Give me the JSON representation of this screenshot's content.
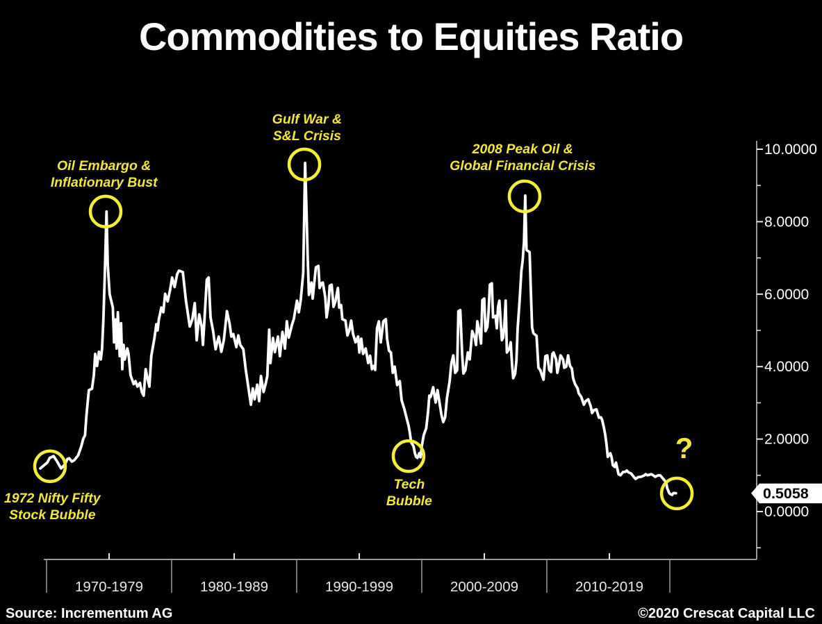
{
  "title": "Commodities to Equities Ratio",
  "footer": {
    "source": "Source: Incrementum AG",
    "copyright": "©2020 Crescat Capital LLC"
  },
  "colors": {
    "background": "#000000",
    "line": "#ffffff",
    "annotation_yellow": "#f2e73b",
    "circle_yellow": "#f6ee35",
    "axis_gray": "#9a9a9a",
    "tick_white": "#e8e8e8",
    "label_white": "#ffffff",
    "tag_bg": "#ffffff",
    "tag_text": "#000000"
  },
  "axes": {
    "y": {
      "major_ticks": [
        {
          "value": 10,
          "label": "10.0000"
        },
        {
          "value": 8,
          "label": "8.0000"
        },
        {
          "value": 6,
          "label": "6.0000"
        },
        {
          "value": 4,
          "label": "4.0000"
        },
        {
          "value": 2,
          "label": "2.0000"
        },
        {
          "value": 0,
          "label": "0.0000"
        }
      ],
      "minor_tick_values": [
        9,
        7,
        5,
        3,
        1,
        -1
      ]
    },
    "x": {
      "decade_labels": [
        "1970-1979",
        "1980-1989",
        "1990-1999",
        "2000-2009",
        "2010-2019"
      ]
    }
  },
  "value_tag": {
    "label": "0.5058",
    "value": 0.5058
  },
  "annotations": [
    {
      "id": "nifty-fifty-bubble",
      "lines": [
        "1972 Nifty Fifty",
        "Stock Bubble"
      ],
      "label_year": 1970.95,
      "label_value": 0.38,
      "circle_year": 1970.77,
      "circle_value": 1.25
    },
    {
      "id": "oil-embargo",
      "lines": [
        "Oil Embargo &",
        "Inflationary Bust"
      ],
      "label_year": 1975.05,
      "label_value": 9.56,
      "circle_year": 1975.18,
      "circle_value": 8.28
    },
    {
      "id": "gulf-war-sl-crisis",
      "lines": [
        "Gulf War &",
        "S&L Crisis"
      ],
      "label_year": 1991.15,
      "label_value": 10.84,
      "circle_year": 1990.94,
      "circle_value": 9.58
    },
    {
      "id": "tech-bubble",
      "lines": [
        "Tech",
        "Bubble"
      ],
      "label_year": 1999.25,
      "label_value": 0.77,
      "circle_year": 1999.2,
      "circle_value": 1.53
    },
    {
      "id": "peak-oil-gfc",
      "lines": [
        "2008 Peak Oil &",
        "Global Financial Crisis"
      ],
      "label_year": 2008.25,
      "label_value": 10.02,
      "circle_year": 2008.4,
      "circle_value": 8.7
    },
    {
      "id": "question-mark",
      "lines": [
        "?"
      ],
      "big": true,
      "label_year": 2021.05,
      "label_value": 1.76,
      "circle_year": 2020.47,
      "circle_value": 0.5
    }
  ],
  "chart_data": {
    "type": "line",
    "title": "Commodities to Equities Ratio",
    "series_name": "Commodities to Equities Ratio",
    "x_unit": "year",
    "xlim": [
      1970,
      2020.5
    ],
    "ylim": [
      -1.4,
      10.4
    ],
    "grid": false,
    "legend": "none",
    "points": [
      [
        1970.0,
        1.19
      ],
      [
        1970.2,
        1.25
      ],
      [
        1970.55,
        1.35
      ],
      [
        1970.75,
        1.48
      ],
      [
        1971.05,
        1.53
      ],
      [
        1971.3,
        1.4
      ],
      [
        1971.65,
        1.19
      ],
      [
        1971.95,
        1.3
      ],
      [
        1972.15,
        1.45
      ],
      [
        1972.3,
        1.47
      ],
      [
        1972.5,
        1.38
      ],
      [
        1972.7,
        1.42
      ],
      [
        1973.0,
        1.55
      ],
      [
        1973.25,
        1.8
      ],
      [
        1973.4,
        2.0
      ],
      [
        1973.55,
        2.11
      ],
      [
        1973.65,
        2.6
      ],
      [
        1973.75,
        3.0
      ],
      [
        1973.85,
        3.35
      ],
      [
        1974.1,
        3.39
      ],
      [
        1974.25,
        3.77
      ],
      [
        1974.35,
        4.35
      ],
      [
        1974.5,
        4.02
      ],
      [
        1974.65,
        4.41
      ],
      [
        1974.8,
        4.2
      ],
      [
        1974.9,
        4.5
      ],
      [
        1975.0,
        5.3
      ],
      [
        1975.1,
        6.4
      ],
      [
        1975.25,
        8.28
      ],
      [
        1975.35,
        6.8
      ],
      [
        1975.5,
        6.0
      ],
      [
        1975.75,
        5.63
      ],
      [
        1975.85,
        4.67
      ],
      [
        1975.95,
        5.3
      ],
      [
        1976.05,
        4.5
      ],
      [
        1976.15,
        5.5
      ],
      [
        1976.3,
        4.29
      ],
      [
        1976.4,
        5.2
      ],
      [
        1976.5,
        3.93
      ],
      [
        1976.6,
        4.6
      ],
      [
        1976.7,
        4.2
      ],
      [
        1976.9,
        4.5
      ],
      [
        1977.0,
        4.35
      ],
      [
        1977.15,
        3.77
      ],
      [
        1977.4,
        3.52
      ],
      [
        1977.55,
        3.6
      ],
      [
        1977.7,
        3.45
      ],
      [
        1977.9,
        3.55
      ],
      [
        1978.05,
        3.3
      ],
      [
        1978.2,
        3.2
      ],
      [
        1978.35,
        3.93
      ],
      [
        1978.55,
        3.6
      ],
      [
        1978.65,
        3.45
      ],
      [
        1978.8,
        4.29
      ],
      [
        1979.05,
        4.79
      ],
      [
        1979.2,
        5.17
      ],
      [
        1979.3,
        5.0
      ],
      [
        1979.4,
        5.3
      ],
      [
        1979.6,
        5.63
      ],
      [
        1979.75,
        5.5
      ],
      [
        1979.9,
        6.01
      ],
      [
        1980.1,
        5.8
      ],
      [
        1980.3,
        6.13
      ],
      [
        1980.45,
        6.46
      ],
      [
        1980.65,
        6.2
      ],
      [
        1980.85,
        6.55
      ],
      [
        1981.0,
        6.65
      ],
      [
        1981.3,
        6.61
      ],
      [
        1981.55,
        5.82
      ],
      [
        1981.85,
        5.11
      ],
      [
        1982.05,
        5.3
      ],
      [
        1982.25,
        5.75
      ],
      [
        1982.4,
        4.73
      ],
      [
        1982.6,
        5.44
      ],
      [
        1982.8,
        5.1
      ],
      [
        1982.9,
        4.6
      ],
      [
        1983.05,
        5.5
      ],
      [
        1983.2,
        6.4
      ],
      [
        1983.35,
        6.46
      ],
      [
        1983.5,
        5.36
      ],
      [
        1983.7,
        4.98
      ],
      [
        1983.9,
        4.48
      ],
      [
        1984.05,
        4.7
      ],
      [
        1984.15,
        4.83
      ],
      [
        1984.35,
        4.41
      ],
      [
        1984.55,
        4.73
      ],
      [
        1984.7,
        5.2
      ],
      [
        1984.8,
        5.53
      ],
      [
        1985.0,
        5.2
      ],
      [
        1985.15,
        4.83
      ],
      [
        1985.3,
        4.9
      ],
      [
        1985.55,
        4.54
      ],
      [
        1985.7,
        4.86
      ],
      [
        1985.85,
        4.6
      ],
      [
        1986.1,
        4.48
      ],
      [
        1986.3,
        3.9
      ],
      [
        1986.55,
        3.3
      ],
      [
        1986.7,
        2.95
      ],
      [
        1986.85,
        3.4
      ],
      [
        1987.0,
        3.1
      ],
      [
        1987.2,
        3.5
      ],
      [
        1987.35,
        3.05
      ],
      [
        1987.5,
        3.74
      ],
      [
        1987.7,
        3.3
      ],
      [
        1987.85,
        3.5
      ],
      [
        1988.0,
        3.74
      ],
      [
        1988.15,
        5.02
      ],
      [
        1988.25,
        4.1
      ],
      [
        1988.45,
        4.79
      ],
      [
        1988.6,
        4.4
      ],
      [
        1988.85,
        4.83
      ],
      [
        1989.0,
        4.29
      ],
      [
        1989.2,
        4.96
      ],
      [
        1989.4,
        4.5
      ],
      [
        1989.55,
        5.25
      ],
      [
        1989.7,
        4.8
      ],
      [
        1989.95,
        5.15
      ],
      [
        1990.1,
        5.31
      ],
      [
        1990.35,
        5.82
      ],
      [
        1990.5,
        5.5
      ],
      [
        1990.65,
        5.84
      ],
      [
        1990.85,
        6.59
      ],
      [
        1991.0,
        9.62
      ],
      [
        1991.1,
        8.4
      ],
      [
        1991.2,
        7.03
      ],
      [
        1991.3,
        5.98
      ],
      [
        1991.5,
        6.32
      ],
      [
        1991.6,
        5.88
      ],
      [
        1991.85,
        6.74
      ],
      [
        1992.05,
        6.78
      ],
      [
        1992.15,
        6.17
      ],
      [
        1992.3,
        6.3
      ],
      [
        1992.4,
        6.32
      ],
      [
        1992.6,
        5.9
      ],
      [
        1992.7,
        5.36
      ],
      [
        1992.85,
        5.7
      ],
      [
        1992.95,
        6.23
      ],
      [
        1993.1,
        6.26
      ],
      [
        1993.25,
        5.65
      ],
      [
        1993.4,
        5.8
      ],
      [
        1993.6,
        6.17
      ],
      [
        1993.7,
        5.63
      ],
      [
        1993.85,
        5.7
      ],
      [
        1993.95,
        5.31
      ],
      [
        1994.2,
        5.27
      ],
      [
        1994.35,
        4.86
      ],
      [
        1994.5,
        5.0
      ],
      [
        1994.65,
        5.27
      ],
      [
        1994.8,
        4.9
      ],
      [
        1995.0,
        4.67
      ],
      [
        1995.2,
        4.83
      ],
      [
        1995.3,
        4.39
      ],
      [
        1995.45,
        4.77
      ],
      [
        1995.6,
        4.35
      ],
      [
        1995.8,
        4.5
      ],
      [
        1996.0,
        4.1
      ],
      [
        1996.15,
        4.3
      ],
      [
        1996.3,
        3.93
      ],
      [
        1996.45,
        4.02
      ],
      [
        1996.55,
        3.91
      ],
      [
        1996.7,
        5.06
      ],
      [
        1996.85,
        5.25
      ],
      [
        1997.0,
        4.67
      ],
      [
        1997.2,
        5.25
      ],
      [
        1997.4,
        5.31
      ],
      [
        1997.5,
        4.77
      ],
      [
        1997.65,
        4.44
      ],
      [
        1997.8,
        4.39
      ],
      [
        1997.95,
        3.83
      ],
      [
        1998.1,
        4.0
      ],
      [
        1998.3,
        3.49
      ],
      [
        1998.5,
        3.6
      ],
      [
        1998.65,
        3.07
      ],
      [
        1998.85,
        2.85
      ],
      [
        1999.05,
        2.57
      ],
      [
        1999.2,
        2.37
      ],
      [
        1999.3,
        2.18
      ],
      [
        1999.4,
        1.92
      ],
      [
        1999.6,
        1.8
      ],
      [
        1999.7,
        1.61
      ],
      [
        1999.8,
        1.51
      ],
      [
        1999.9,
        1.48
      ],
      [
        2000.05,
        1.61
      ],
      [
        2000.15,
        1.5
      ],
      [
        2000.25,
        1.8
      ],
      [
        2000.4,
        2.11
      ],
      [
        2000.6,
        2.3
      ],
      [
        2000.75,
        2.76
      ],
      [
        2000.85,
        3.2
      ],
      [
        2000.95,
        3.16
      ],
      [
        2001.15,
        3.43
      ],
      [
        2001.35,
        3.01
      ],
      [
        2001.5,
        3.35
      ],
      [
        2001.8,
        2.68
      ],
      [
        2001.95,
        2.47
      ],
      [
        2002.1,
        2.6
      ],
      [
        2002.25,
        3.14
      ],
      [
        2002.45,
        3.58
      ],
      [
        2002.6,
        4.1
      ],
      [
        2002.75,
        4.31
      ],
      [
        2002.9,
        3.83
      ],
      [
        2003.05,
        3.9
      ],
      [
        2003.15,
        5.53
      ],
      [
        2003.3,
        5.56
      ],
      [
        2003.45,
        4.35
      ],
      [
        2003.55,
        3.81
      ],
      [
        2003.7,
        3.9
      ],
      [
        2003.9,
        4.39
      ],
      [
        2004.05,
        4.2
      ],
      [
        2004.25,
        4.98
      ],
      [
        2004.45,
        4.8
      ],
      [
        2004.55,
        4.6
      ],
      [
        2004.65,
        5.25
      ],
      [
        2004.8,
        5.0
      ],
      [
        2004.95,
        4.64
      ],
      [
        2005.05,
        5.84
      ],
      [
        2005.2,
        5.88
      ],
      [
        2005.3,
        4.98
      ],
      [
        2005.45,
        5.1
      ],
      [
        2005.55,
        5.53
      ],
      [
        2005.65,
        6.26
      ],
      [
        2005.8,
        6.3
      ],
      [
        2005.9,
        5.36
      ],
      [
        2006.1,
        5.4
      ],
      [
        2006.2,
        5.06
      ],
      [
        2006.3,
        5.65
      ],
      [
        2006.4,
        5.82
      ],
      [
        2006.6,
        4.73
      ],
      [
        2006.7,
        4.8
      ],
      [
        2006.8,
        5.15
      ],
      [
        2006.9,
        5.82
      ],
      [
        2007.0,
        4.39
      ],
      [
        2007.2,
        4.5
      ],
      [
        2007.3,
        4.67
      ],
      [
        2007.4,
        4.1
      ],
      [
        2007.5,
        3.68
      ],
      [
        2007.65,
        3.8
      ],
      [
        2007.75,
        4.16
      ],
      [
        2007.85,
        5.06
      ],
      [
        2008.0,
        5.79
      ],
      [
        2008.15,
        6.65
      ],
      [
        2008.25,
        6.93
      ],
      [
        2008.35,
        7.45
      ],
      [
        2008.45,
        8.72
      ],
      [
        2008.55,
        7.22
      ],
      [
        2008.8,
        7.16
      ],
      [
        2008.9,
        6.07
      ],
      [
        2009.0,
        5.08
      ],
      [
        2009.1,
        4.92
      ],
      [
        2009.35,
        4.85
      ],
      [
        2009.5,
        3.97
      ],
      [
        2009.65,
        3.9
      ],
      [
        2009.8,
        3.74
      ],
      [
        2009.9,
        3.64
      ],
      [
        2010.05,
        4.29
      ],
      [
        2010.2,
        4.31
      ],
      [
        2010.35,
        3.91
      ],
      [
        2010.5,
        3.85
      ],
      [
        2010.6,
        4.35
      ],
      [
        2010.7,
        4.39
      ],
      [
        2010.9,
        4.2
      ],
      [
        2011.0,
        3.83
      ],
      [
        2011.15,
        4.1
      ],
      [
        2011.25,
        4.31
      ],
      [
        2011.45,
        4.2
      ],
      [
        2011.55,
        3.97
      ],
      [
        2011.7,
        4.0
      ],
      [
        2011.85,
        4.31
      ],
      [
        2012.0,
        4.02
      ],
      [
        2012.15,
        3.95
      ],
      [
        2012.25,
        3.68
      ],
      [
        2012.4,
        3.52
      ],
      [
        2012.6,
        3.4
      ],
      [
        2012.7,
        3.26
      ],
      [
        2012.9,
        3.16
      ],
      [
        2013.1,
        2.95
      ],
      [
        2013.25,
        3.05
      ],
      [
        2013.45,
        3.1
      ],
      [
        2013.65,
        2.9
      ],
      [
        2013.75,
        2.72
      ],
      [
        2013.9,
        2.8
      ],
      [
        2014.1,
        2.82
      ],
      [
        2014.3,
        2.59
      ],
      [
        2014.45,
        2.6
      ],
      [
        2014.55,
        2.53
      ],
      [
        2014.7,
        2.3
      ],
      [
        2014.8,
        2.11
      ],
      [
        2014.9,
        1.85
      ],
      [
        2015.0,
        1.51
      ],
      [
        2015.2,
        1.61
      ],
      [
        2015.3,
        1.5
      ],
      [
        2015.4,
        1.28
      ],
      [
        2015.55,
        1.23
      ],
      [
        2015.65,
        1.35
      ],
      [
        2015.85,
        1.03
      ],
      [
        2016.0,
        1.0
      ],
      [
        2016.2,
        1.09
      ],
      [
        2016.4,
        1.1
      ],
      [
        2016.5,
        1.13
      ],
      [
        2016.65,
        1.08
      ],
      [
        2016.85,
        1.05
      ],
      [
        2017.05,
        0.96
      ],
      [
        2017.2,
        0.9
      ],
      [
        2017.4,
        0.95
      ],
      [
        2017.65,
        0.96
      ],
      [
        2017.9,
        1.0
      ],
      [
        2018.0,
        1.03
      ],
      [
        2018.15,
        1.0
      ],
      [
        2018.45,
        1.03
      ],
      [
        2018.6,
        1.0
      ],
      [
        2018.75,
        0.96
      ],
      [
        2019.0,
        1.0
      ],
      [
        2019.15,
        1.0
      ],
      [
        2019.3,
        0.94
      ],
      [
        2019.55,
        0.84
      ],
      [
        2019.65,
        0.77
      ],
      [
        2019.7,
        0.65
      ],
      [
        2019.8,
        0.57
      ],
      [
        2019.85,
        0.52
      ],
      [
        2019.95,
        0.48
      ],
      [
        2020.1,
        0.46
      ],
      [
        2020.2,
        0.51
      ],
      [
        2020.4,
        0.5058
      ]
    ]
  }
}
